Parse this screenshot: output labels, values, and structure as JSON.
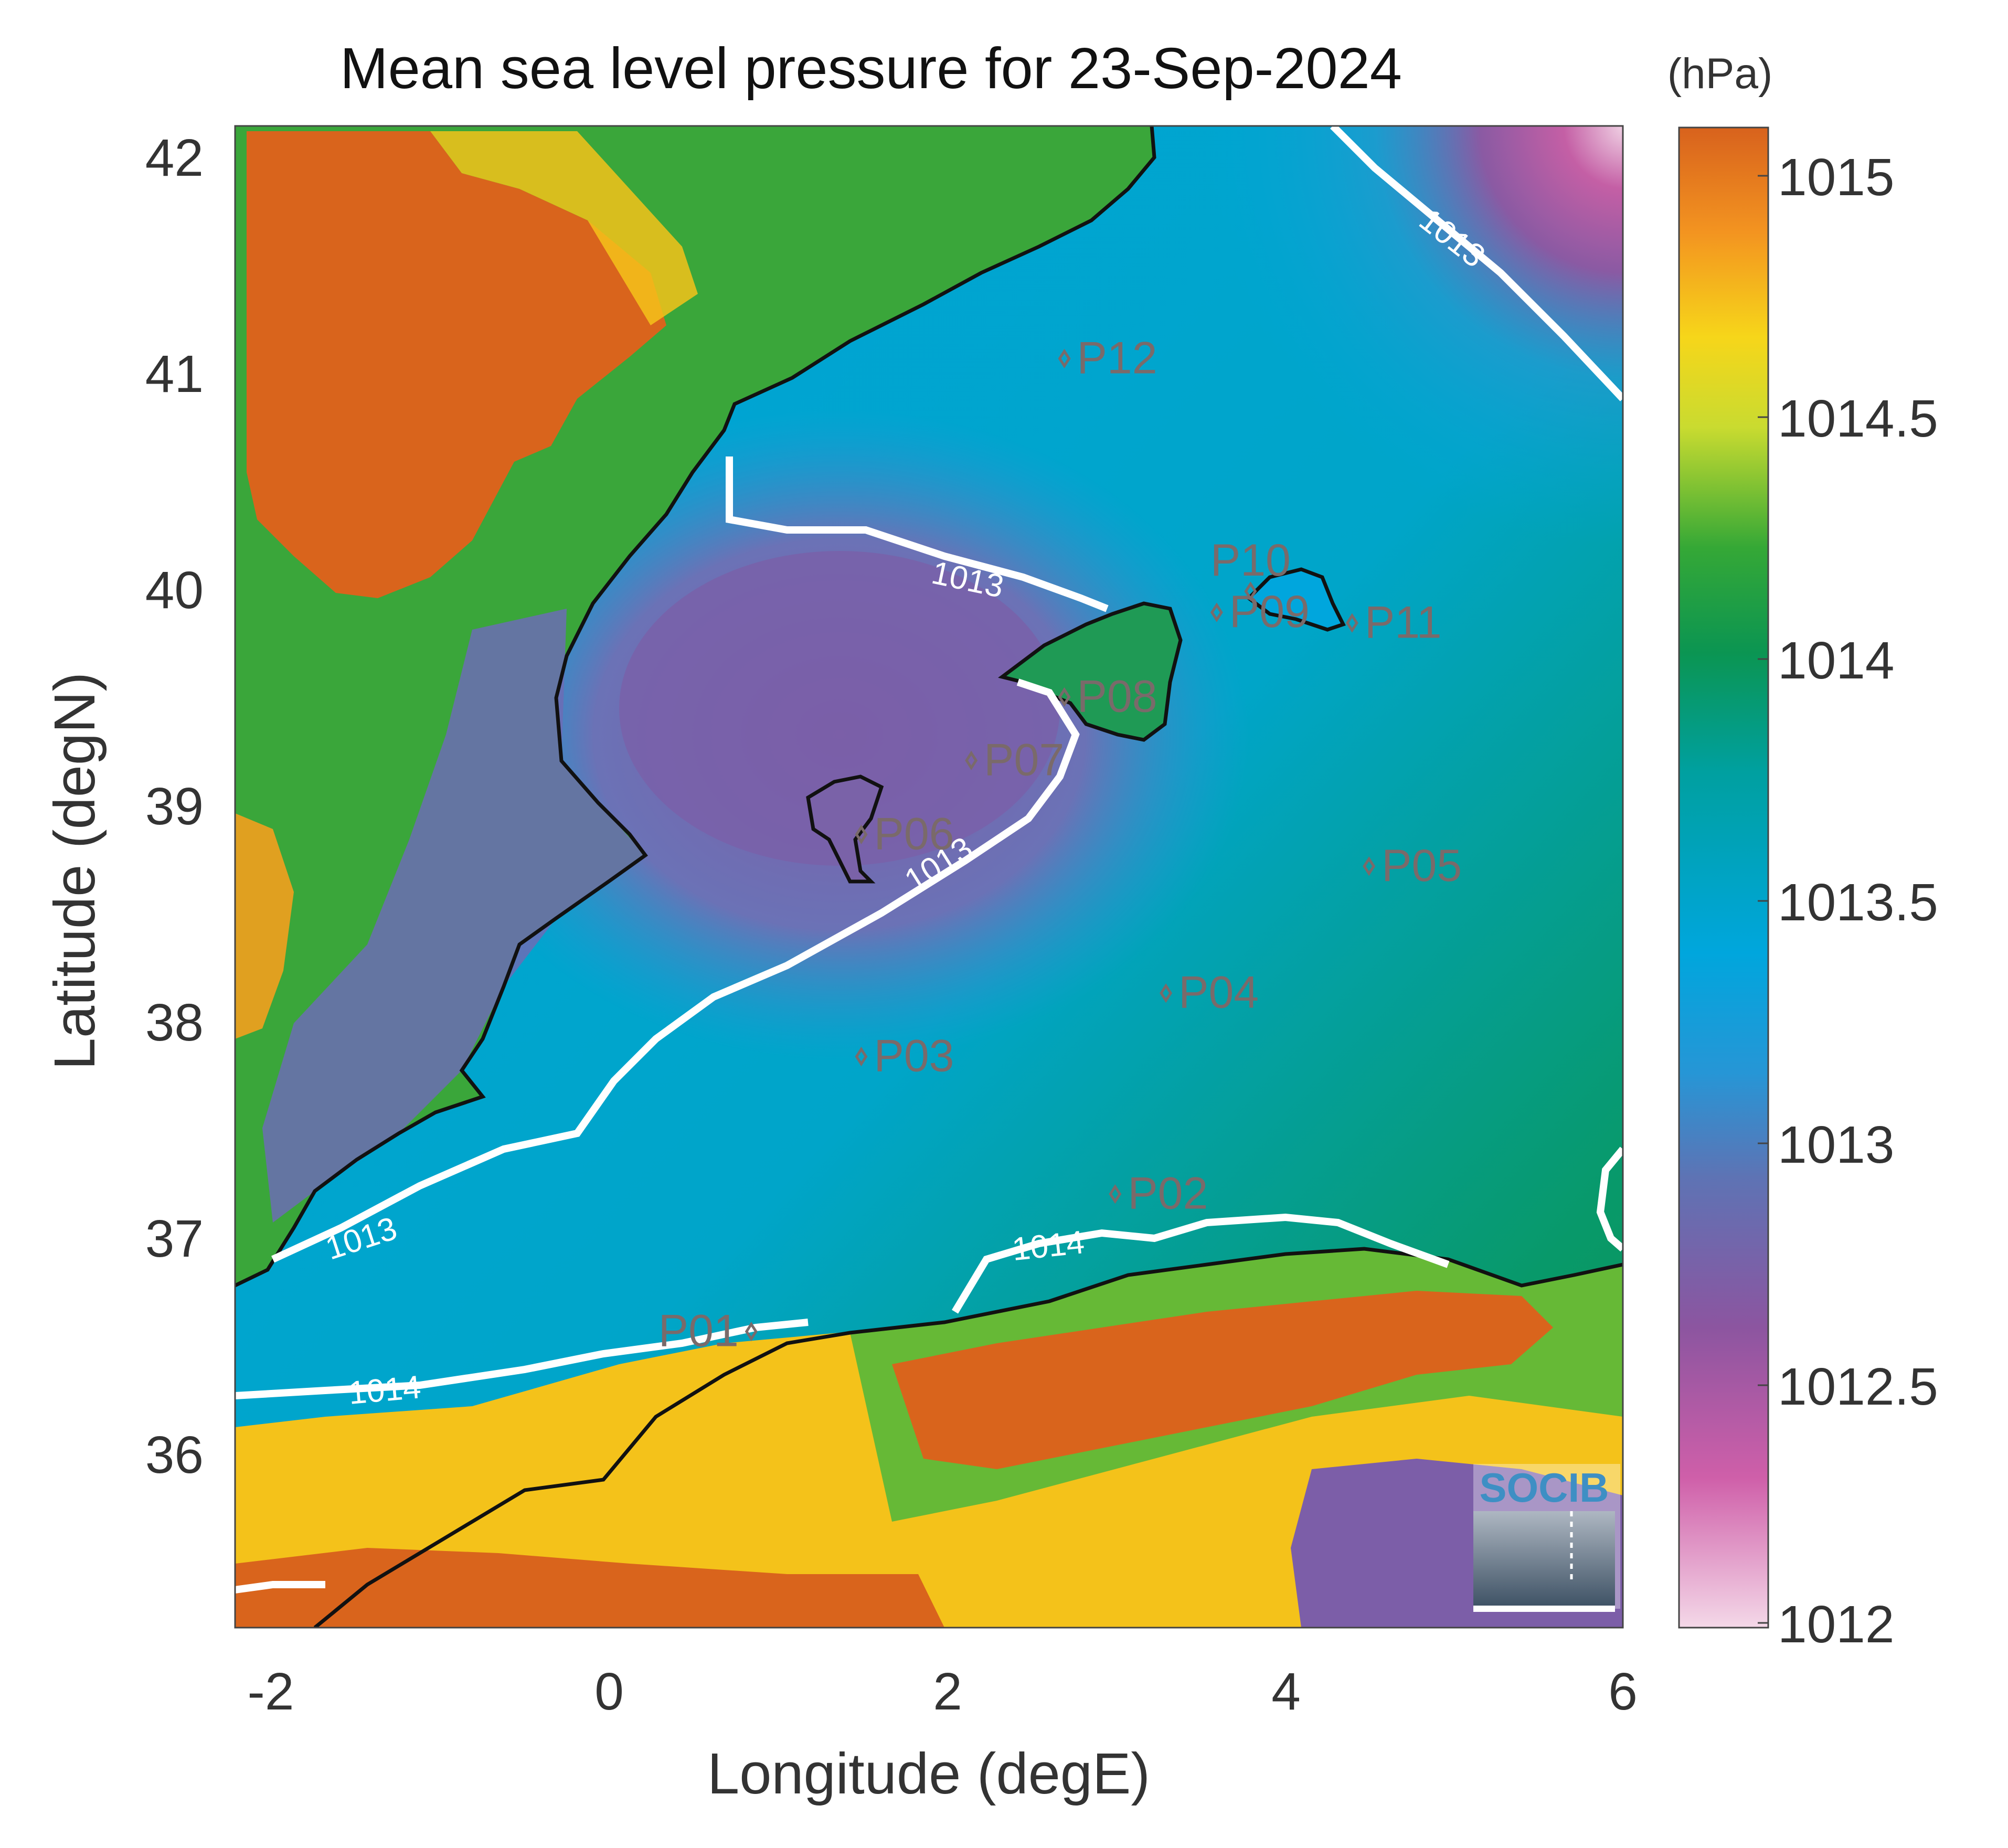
{
  "title": "Mean sea level pressure for 23-Sep-2024",
  "units": "(hPa)",
  "xlabel": "Longitude (degE)",
  "ylabel": "Latitude (degN)",
  "x_ticks": [
    "-2",
    "0",
    "2",
    "4",
    "6"
  ],
  "y_ticks": [
    "42",
    "41",
    "40",
    "39",
    "38",
    "37",
    "36"
  ],
  "colorbar_ticks": [
    "1015",
    "1014.5",
    "1014",
    "1013.5",
    "1013",
    "1012.5",
    "1012"
  ],
  "logo_text": "SOCIB",
  "contour_labels": [
    "1013",
    "1013",
    "1013",
    "1013",
    "1014",
    "1014"
  ],
  "stations": [
    {
      "name": "P01",
      "lon": 0.85,
      "lat": 36.5
    },
    {
      "name": "P02",
      "lon": 3.0,
      "lat": 37.15
    },
    {
      "name": "P03",
      "lon": 1.5,
      "lat": 37.8
    },
    {
      "name": "P04",
      "lon": 3.3,
      "lat": 38.1
    },
    {
      "name": "P05",
      "lon": 4.5,
      "lat": 38.7
    },
    {
      "name": "P06",
      "lon": 1.5,
      "lat": 38.85
    },
    {
      "name": "P07",
      "lon": 2.15,
      "lat": 39.2
    },
    {
      "name": "P08",
      "lon": 2.7,
      "lat": 39.5
    },
    {
      "name": "P09",
      "lon": 3.6,
      "lat": 39.9
    },
    {
      "name": "P10",
      "lon": 3.8,
      "lat": 40.0
    },
    {
      "name": "P11",
      "lon": 4.4,
      "lat": 39.85
    },
    {
      "name": "P12",
      "lon": 2.7,
      "lat": 41.1
    }
  ],
  "colors": {
    "land_high": "#d9641c",
    "land_mid": "#f4c21a",
    "land_low": "#4fae3b",
    "sea_low_pressure": "#7b5fa3",
    "sea_mid": "#0aa2d8",
    "sea_high": "#0d9550",
    "contour": "#ffffff",
    "coastline": "#111111",
    "station": "#7a6a6a"
  },
  "chart_data": {
    "type": "heatmap",
    "title": "Mean sea level pressure for 23-Sep-2024",
    "xlabel": "Longitude (degE)",
    "ylabel": "Latitude (degN)",
    "xlim": [
      -2.2,
      6.0
    ],
    "ylim": [
      35.1,
      42.2
    ],
    "colorbar": {
      "label": "(hPa)",
      "range": [
        1012,
        1015.1
      ],
      "ticks": [
        1012,
        1012.5,
        1013,
        1013.5,
        1014,
        1014.5,
        1015
      ]
    },
    "contours": [
      1013,
      1014
    ]
  }
}
